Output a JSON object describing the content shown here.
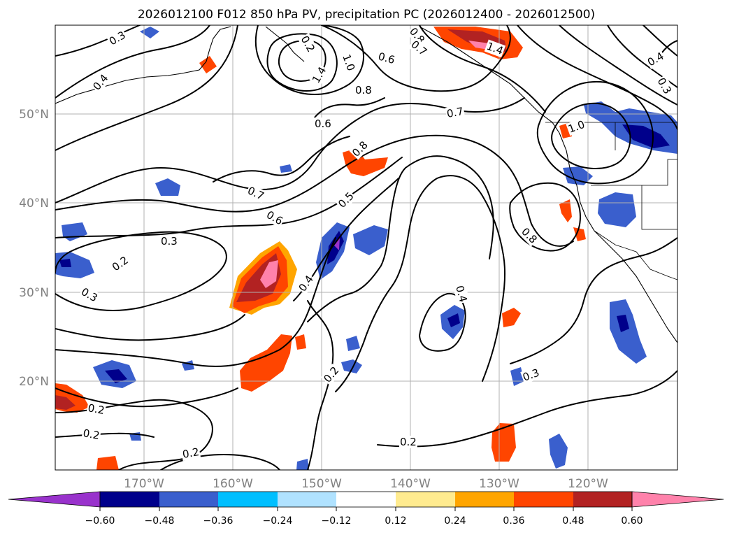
{
  "title": "2026012100 F012 850 hPa PV, precipitation PC (2026012400 - 2026012500)",
  "longitude_labels": [
    "170°W",
    "160°W",
    "150°W",
    "140°W",
    "130°W",
    "120°W"
  ],
  "latitude_labels": [
    "50°N",
    "40°N",
    "30°N",
    "20°N"
  ],
  "colorbar": {
    "ticks": [
      "−0.60",
      "−0.48",
      "−0.36",
      "−0.24",
      "−0.12",
      "0.12",
      "0.24",
      "0.36",
      "0.48",
      "0.60"
    ],
    "colors": [
      "#9932cc",
      "#00008b",
      "#3a5fcd",
      "#00bfff",
      "#b0e2ff",
      "#ffffff",
      "#ffeb8f",
      "#ffa500",
      "#ff4500",
      "#b22222",
      "#ff82ab"
    ]
  },
  "contour_labels": [
    {
      "text": "0.3"
    },
    {
      "text": "0.4"
    },
    {
      "text": "0.2"
    },
    {
      "text": "1.4"
    },
    {
      "text": "1.0"
    },
    {
      "text": "0.6"
    },
    {
      "text": "0.8"
    },
    {
      "text": "0.7"
    },
    {
      "text": "1.4"
    },
    {
      "text": "0.8"
    },
    {
      "text": "0.7"
    },
    {
      "text": "0.6"
    },
    {
      "text": "0.8"
    },
    {
      "text": "1.0"
    },
    {
      "text": "0.4"
    },
    {
      "text": "0.3"
    },
    {
      "text": "0.7"
    },
    {
      "text": "0.6"
    },
    {
      "text": "0.5"
    },
    {
      "text": "0.3"
    },
    {
      "text": "0.2"
    },
    {
      "text": "0.3"
    },
    {
      "text": "0.4"
    },
    {
      "text": "0.8"
    },
    {
      "text": "0.4"
    },
    {
      "text": "0.2"
    },
    {
      "text": "0.2"
    },
    {
      "text": "0.2"
    },
    {
      "text": "0.2"
    },
    {
      "text": "0.2"
    },
    {
      "text": "0.3"
    }
  ]
}
